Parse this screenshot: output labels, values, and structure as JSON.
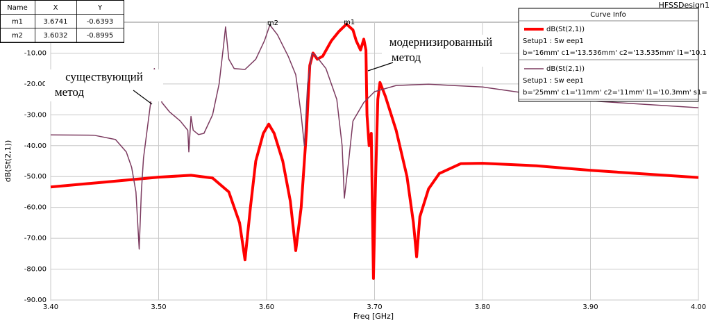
{
  "chart_data": {
    "type": "line",
    "title": "HFSSDesign1",
    "x_label": "Freq [GHz]",
    "y_label": "dB(St(2,1))",
    "xlim": [
      3.4,
      4.0
    ],
    "ylim": [
      -90,
      0
    ],
    "xticks": [
      {
        "value": 3.4,
        "label": "3.40"
      },
      {
        "value": 3.5,
        "label": "3.50"
      },
      {
        "value": 3.6,
        "label": "3.60"
      },
      {
        "value": 3.7,
        "label": "3.70"
      },
      {
        "value": 3.8,
        "label": "3.80"
      },
      {
        "value": 3.9,
        "label": "3.90"
      },
      {
        "value": 4.0,
        "label": "4.00"
      }
    ],
    "yticks": [
      {
        "value": -10,
        "label": "-10.00"
      },
      {
        "value": -20,
        "label": "-20.00"
      },
      {
        "value": -30,
        "label": "-30.00"
      },
      {
        "value": -40,
        "label": "-40.00"
      },
      {
        "value": -50,
        "label": "-50.00"
      },
      {
        "value": -60,
        "label": "-60.00"
      },
      {
        "value": -70,
        "label": "-70.00"
      },
      {
        "value": -80,
        "label": "-80.00"
      },
      {
        "value": -90,
        "label": "-90.00"
      }
    ],
    "grid": true,
    "legend_title": "Curve Info",
    "series": [
      {
        "name": "dB(St(2,1))",
        "setup": "Setup1 : Sw eep1",
        "variables": "b='16mm' c1='13.536mm' c2='13.535mm' l1='10.1",
        "color": "#ff0000",
        "width": 4,
        "x": [
          3.4,
          3.45,
          3.5,
          3.53,
          3.55,
          3.565,
          3.575,
          3.58,
          3.585,
          3.59,
          3.597,
          3.602,
          3.607,
          3.615,
          3.622,
          3.627,
          3.632,
          3.637,
          3.64,
          3.643,
          3.647,
          3.652,
          3.66,
          3.667,
          3.674,
          3.68,
          3.683,
          3.687,
          3.69,
          3.692,
          3.693,
          3.695,
          3.697,
          3.699,
          3.701,
          3.703,
          3.705,
          3.71,
          3.72,
          3.73,
          3.736,
          3.739,
          3.742,
          3.75,
          3.76,
          3.78,
          3.8,
          3.85,
          3.9,
          4.0
        ],
        "values": [
          -53.4,
          -51.8,
          -50.2,
          -49.6,
          -50.5,
          -55,
          -65,
          -77,
          -60,
          -45,
          -36,
          -33,
          -36,
          -45,
          -58,
          -74,
          -60,
          -35,
          -14,
          -10,
          -12,
          -11,
          -6,
          -3,
          -0.6,
          -2.5,
          -6,
          -9,
          -5.5,
          -9,
          -30,
          -40,
          -36,
          -83,
          -50,
          -25,
          -19.5,
          -24,
          -35,
          -50,
          -65,
          -76,
          -63,
          -54,
          -49,
          -45.8,
          -45.7,
          -46.5,
          -48,
          -50.3
        ]
      },
      {
        "name": "dB(St(2,1))",
        "setup": "Setup1 : Sw eep1",
        "variables": "b='25mm' c1='11mm' c2='11mm' l1='10.3mm' s1=",
        "color": "#7b3a5f",
        "width": 1.5,
        "x": [
          3.4,
          3.44,
          3.46,
          3.47,
          3.475,
          3.479,
          3.482,
          3.484,
          3.486,
          3.49,
          3.493,
          3.496,
          3.499,
          3.503,
          3.51,
          3.52,
          3.527,
          3.528,
          3.53,
          3.532,
          3.537,
          3.542,
          3.55,
          3.556,
          3.56,
          3.562,
          3.565,
          3.57,
          3.58,
          3.59,
          3.598,
          3.603,
          3.61,
          3.62,
          3.627,
          3.632,
          3.635,
          3.638,
          3.642,
          3.646,
          3.655,
          3.665,
          3.67,
          3.672,
          3.676,
          3.68,
          3.69,
          3.7,
          3.72,
          3.75,
          3.8,
          3.85,
          3.9,
          4.0
        ],
        "values": [
          -36.5,
          -36.6,
          -38,
          -42,
          -47,
          -55,
          -73.5,
          -55,
          -44,
          -33,
          -25,
          -15,
          -20,
          -26,
          -29,
          -32,
          -35,
          -42,
          -30.5,
          -35,
          -36.4,
          -36,
          -30,
          -20,
          -8,
          -1.5,
          -12,
          -15,
          -15.3,
          -12,
          -6,
          -0.9,
          -4,
          -11,
          -17,
          -30,
          -40,
          -20,
          -10,
          -11,
          -15,
          -25,
          -40,
          -57,
          -45,
          -32,
          -26,
          -22.5,
          -20.5,
          -20.1,
          -21,
          -23.5,
          -25.5,
          -27.7
        ]
      }
    ],
    "marker_table": {
      "header": [
        "Name",
        "X",
        "Y"
      ],
      "rows": [
        {
          "name": "m1",
          "x": 3.6741,
          "y": -0.6393
        },
        {
          "name": "m2",
          "x": 3.6032,
          "y": -0.8995
        }
      ]
    },
    "annotations": [
      {
        "lines": [
          "существующий",
          "метод"
        ]
      },
      {
        "lines": [
          "модернизированный",
          "метод"
        ]
      }
    ]
  }
}
